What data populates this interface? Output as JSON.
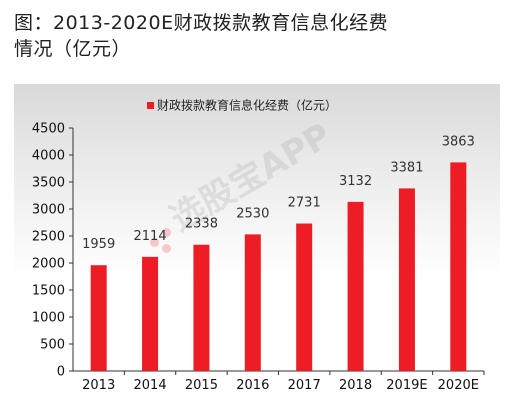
{
  "title": {
    "line1": "图：2013-2020E财政拨款教育信息化经费",
    "line2": "情况（亿元）"
  },
  "watermark": "选股宝APP",
  "colors": {
    "bar": "#ee1c25",
    "axis": "#333333"
  },
  "chart_data": {
    "type": "bar",
    "title": "图：2013-2020E财政拨款教育信息化经费情况（亿元）",
    "categories": [
      "2013",
      "2014",
      "2015",
      "2016",
      "2017",
      "2018",
      "2019E",
      "2020E"
    ],
    "series": [
      {
        "name": "财政拨款教育信息化经费（亿元）",
        "values": [
          1959,
          2114,
          2338,
          2530,
          2731,
          3132,
          3381,
          3863
        ]
      }
    ],
    "xlabel": "",
    "ylabel": "",
    "ylim": [
      0,
      4500
    ],
    "yticks": [
      0,
      500,
      1000,
      1500,
      2000,
      2500,
      3000,
      3500,
      4000,
      4500
    ],
    "grid": false,
    "legend": "top-center",
    "data_labels": true
  }
}
